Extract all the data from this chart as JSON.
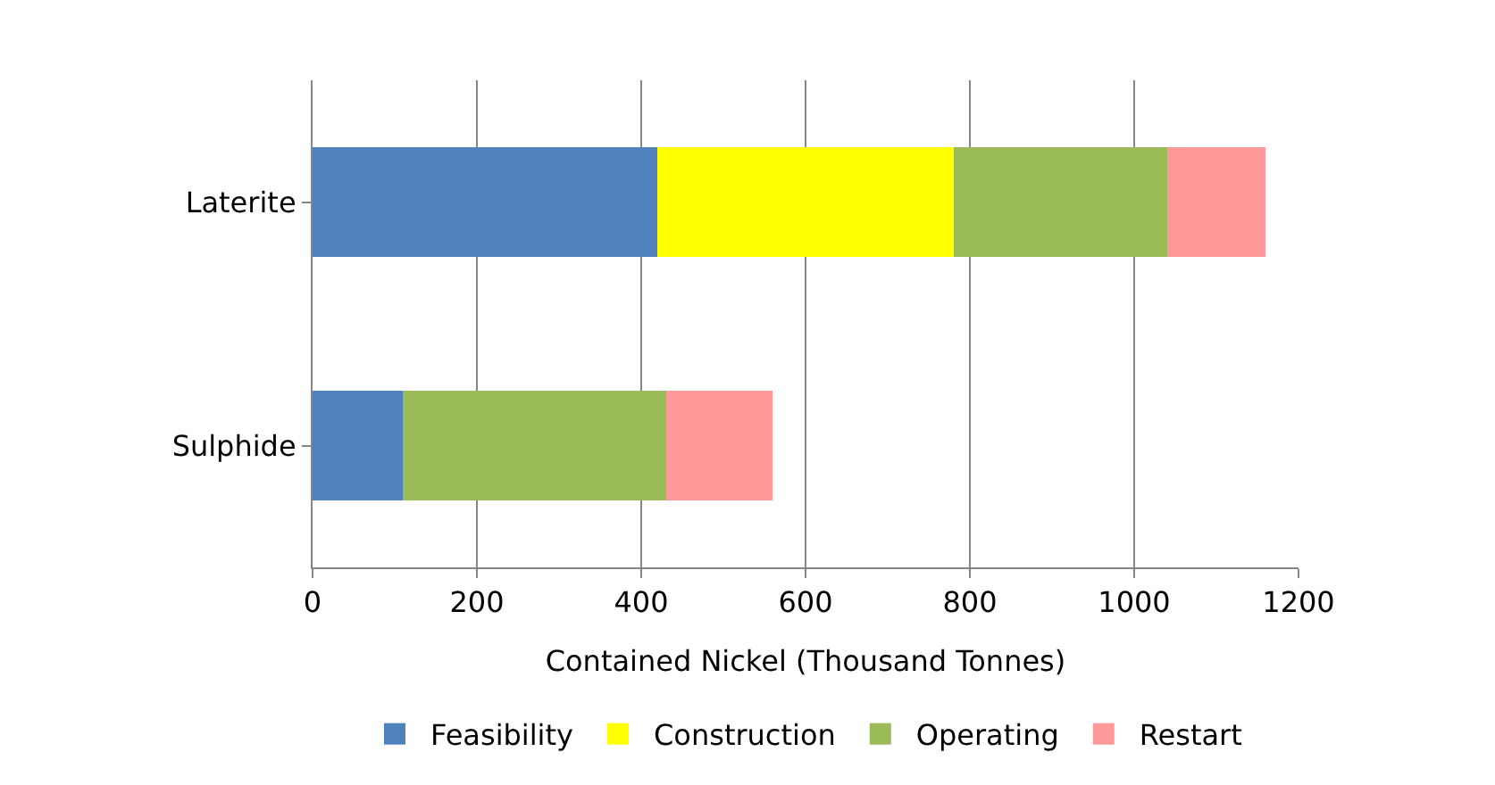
{
  "chart_data": {
    "type": "bar",
    "orientation": "horizontal",
    "stacked": true,
    "categories": [
      "Laterite",
      "Sulphide"
    ],
    "series": [
      {
        "name": "Feasibility",
        "color": "#4f81bd",
        "values": [
          420,
          110
        ]
      },
      {
        "name": "Construction",
        "color": "#ffff00",
        "values": [
          360,
          0
        ]
      },
      {
        "name": "Operating",
        "color": "#9bbb59",
        "values": [
          260,
          320
        ]
      },
      {
        "name": "Restart",
        "color": "#ff9999",
        "values": [
          120,
          130
        ]
      }
    ],
    "xlabel": "Contained Nickel (Thousand Tonnes)",
    "xlim": [
      0,
      1200
    ],
    "xticks": [
      0,
      200,
      400,
      600,
      800,
      1000,
      1200
    ],
    "grid": "x",
    "legend": "bottom"
  }
}
